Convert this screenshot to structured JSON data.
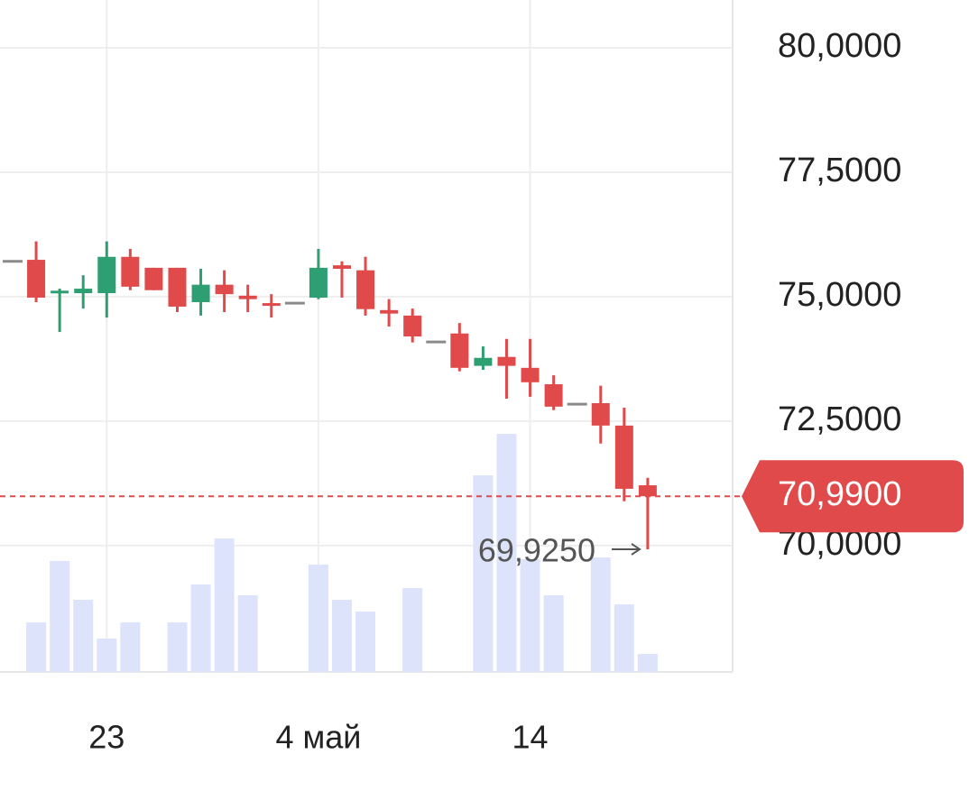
{
  "chart_data": {
    "type": "candlestick",
    "categories": [
      null,
      null,
      null,
      null,
      "23",
      null,
      null,
      null,
      null,
      null,
      null,
      null,
      null,
      "4 май",
      null,
      null,
      null,
      null,
      null,
      null,
      null,
      null,
      "14",
      null,
      null,
      null,
      null,
      null
    ],
    "open": [
      75.71,
      75.74,
      75.07,
      75.07,
      75.07,
      75.8,
      75.58,
      75.58,
      74.89,
      75.24,
      75.02,
      74.87,
      74.87,
      74.98,
      75.63,
      75.53,
      74.73,
      74.62,
      74.09,
      74.26,
      73.61,
      73.79,
      73.57,
      73.24,
      72.84,
      72.86,
      72.41,
      71.21
    ],
    "high": [
      75.71,
      76.11,
      75.16,
      75.43,
      76.11,
      75.96,
      75.58,
      75.58,
      75.56,
      75.53,
      75.24,
      75.05,
      74.87,
      75.96,
      75.71,
      75.8,
      74.95,
      74.76,
      74.09,
      74.47,
      74.0,
      74.15,
      74.15,
      73.42,
      72.84,
      73.21,
      72.77,
      71.36
    ],
    "low": [
      75.71,
      74.89,
      74.29,
      74.76,
      74.58,
      75.13,
      75.13,
      74.69,
      74.62,
      74.69,
      74.69,
      74.58,
      74.87,
      74.95,
      74.98,
      74.62,
      74.4,
      74.08,
      74.09,
      73.5,
      73.53,
      72.95,
      72.99,
      72.72,
      72.84,
      72.05,
      70.89,
      69.925
    ],
    "close": [
      75.71,
      74.98,
      75.12,
      75.16,
      75.8,
      75.2,
      75.13,
      74.8,
      75.24,
      75.05,
      74.95,
      74.82,
      74.87,
      75.58,
      75.56,
      74.75,
      74.66,
      74.2,
      74.09,
      73.57,
      73.77,
      73.61,
      73.28,
      72.79,
      72.84,
      72.41,
      71.14,
      70.99
    ],
    "volume": [
      null,
      55,
      123,
      80,
      37,
      55,
      null,
      55,
      97,
      148,
      85,
      null,
      null,
      119,
      80,
      67,
      null,
      93,
      null,
      null,
      218,
      264,
      125,
      85,
      null,
      127,
      75,
      20
    ],
    "up_color": "#2e9e73",
    "down_color": "#e04a4a",
    "flat_color": "#8a8a8a",
    "volume_color": "#dde3fb",
    "ylim": [
      67.46,
      80.96
    ],
    "yticks": [
      {
        "value": 80,
        "label": "80,0000"
      },
      {
        "value": 77.5,
        "label": "77,5000"
      },
      {
        "value": 75,
        "label": "75,0000"
      },
      {
        "value": 72.5,
        "label": "72,5000"
      },
      {
        "value": 70,
        "label": "70,0000"
      }
    ],
    "grid": true,
    "last_price": {
      "value": 70.99,
      "label": "70,9900"
    },
    "low_annotation": {
      "value": 69.925,
      "label": "69,9250"
    }
  }
}
